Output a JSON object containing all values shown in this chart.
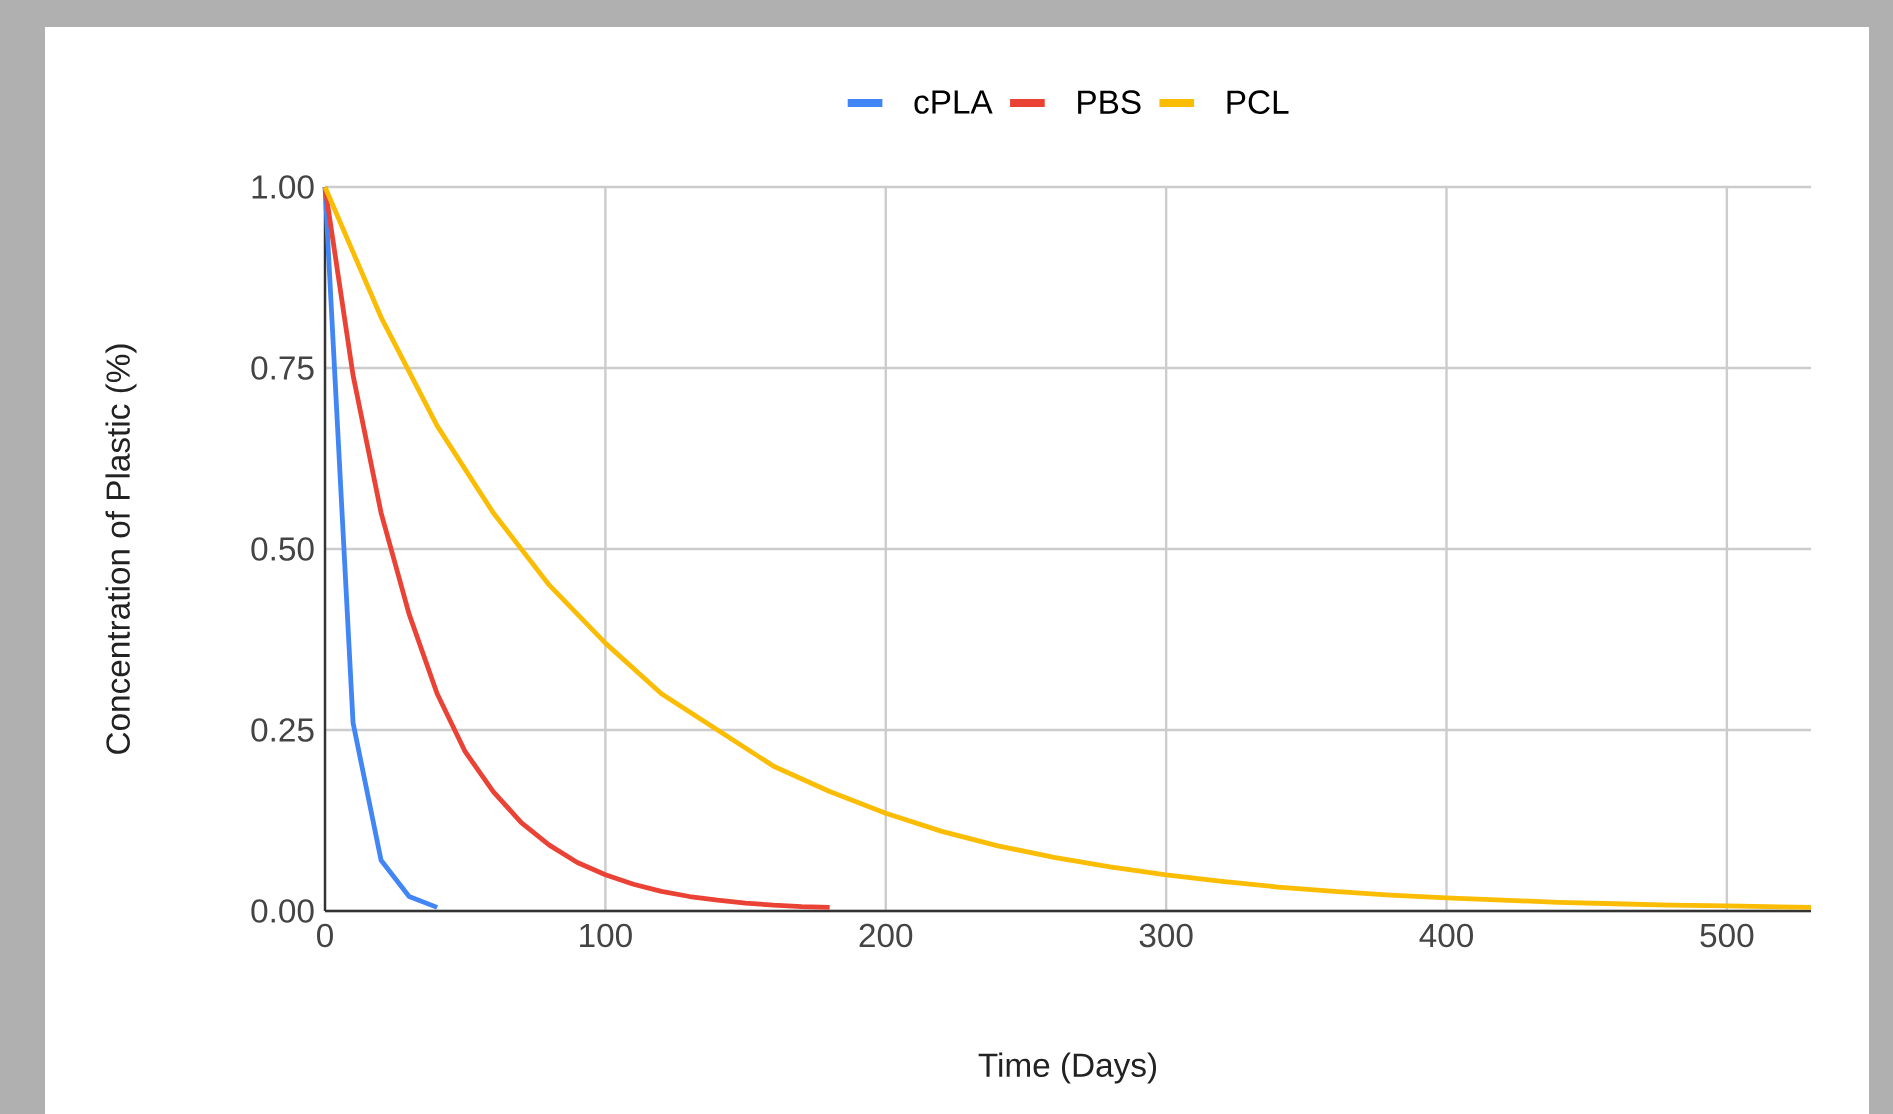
{
  "chart_data": {
    "type": "line",
    "xlabel": "Time (Days)",
    "ylabel": "Concentration of Plastic (%)",
    "xlim": [
      0,
      530
    ],
    "xticks": [
      0,
      100,
      200,
      300,
      400,
      500
    ],
    "ylim": [
      0,
      1
    ],
    "yticks": [
      {
        "value": 0,
        "label": "0.00"
      },
      {
        "value": 0.25,
        "label": "0.25"
      },
      {
        "value": 0.5,
        "label": "0.50"
      },
      {
        "value": 0.75,
        "label": "0.75"
      },
      {
        "value": 1,
        "label": "1.00"
      }
    ],
    "grid": true,
    "legend": "top",
    "series": [
      {
        "name": "cPLA",
        "color": "#4285f4",
        "x": [
          0,
          10,
          20,
          30,
          40
        ],
        "values": [
          1,
          0.26,
          0.07,
          0.02,
          0.005
        ]
      },
      {
        "name": "PBS",
        "color": "#ea4335",
        "x": [
          0,
          10,
          20,
          30,
          40,
          50,
          60,
          70,
          80,
          90,
          100,
          110,
          120,
          130,
          140,
          150,
          160,
          170,
          180
        ],
        "values": [
          1,
          0.74,
          0.55,
          0.41,
          0.3,
          0.22,
          0.165,
          0.122,
          0.091,
          0.067,
          0.05,
          0.037,
          0.027,
          0.02,
          0.015,
          0.011,
          0.008,
          0.006,
          0.005
        ]
      },
      {
        "name": "PCL",
        "color": "#fbbc04",
        "x": [
          0,
          20,
          40,
          60,
          80,
          100,
          120,
          140,
          160,
          180,
          200,
          220,
          240,
          260,
          280,
          300,
          320,
          340,
          360,
          380,
          400,
          420,
          440,
          460,
          480,
          500,
          530
        ],
        "values": [
          1,
          0.82,
          0.67,
          0.55,
          0.45,
          0.37,
          0.3,
          0.25,
          0.2,
          0.165,
          0.135,
          0.11,
          0.09,
          0.074,
          0.061,
          0.05,
          0.041,
          0.033,
          0.027,
          0.022,
          0.018,
          0.015,
          0.012,
          0.01,
          0.008,
          0.007,
          0.005
        ]
      }
    ]
  }
}
